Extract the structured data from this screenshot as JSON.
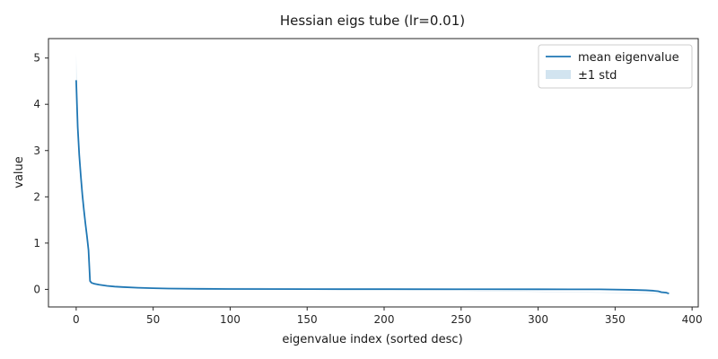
{
  "chart_data": {
    "type": "line",
    "title": "Hessian eigs tube (lr=0.01)",
    "xlabel": "eigenvalue index (sorted desc)",
    "ylabel": "value",
    "xlim": [
      -18,
      404
    ],
    "ylim": [
      -0.38,
      5.42
    ],
    "xticks": [
      0,
      50,
      100,
      150,
      200,
      250,
      300,
      350,
      400
    ],
    "yticks": [
      0,
      1,
      2,
      3,
      4,
      5
    ],
    "grid": false,
    "legend_position": "upper-right",
    "colors": {
      "line": "#1f77b4",
      "band": "#1f77b4",
      "band_opacity": 0.2,
      "axes": "#262626"
    },
    "series": [
      {
        "name": "mean eigenvalue",
        "kind": "line",
        "x": [
          0,
          1,
          2,
          3,
          4,
          5,
          6,
          7,
          8,
          9,
          10,
          12,
          15,
          20,
          25,
          30,
          40,
          50,
          60,
          80,
          100,
          150,
          200,
          250,
          300,
          340,
          360,
          370,
          375,
          378,
          380,
          383,
          385
        ],
        "y": [
          4.52,
          3.5,
          2.9,
          2.45,
          2.05,
          1.72,
          1.42,
          1.15,
          0.85,
          0.18,
          0.14,
          0.12,
          0.1,
          0.075,
          0.06,
          0.05,
          0.035,
          0.025,
          0.018,
          0.012,
          0.008,
          0.005,
          0.004,
          0.003,
          0.002,
          0.0,
          -0.01,
          -0.02,
          -0.03,
          -0.04,
          -0.06,
          -0.07,
          -0.09
        ]
      },
      {
        "name": "±1 std",
        "kind": "band",
        "x": [
          0,
          1,
          2,
          3,
          4,
          5,
          6,
          7,
          8,
          9,
          10,
          15,
          20,
          385
        ],
        "lower": [
          4.0,
          3.35,
          2.8,
          2.38,
          2.0,
          1.68,
          1.39,
          1.13,
          0.83,
          0.17,
          0.135,
          0.098,
          0.074,
          -0.095
        ],
        "upper": [
          5.1,
          3.65,
          3.0,
          2.52,
          2.1,
          1.76,
          1.45,
          1.17,
          0.87,
          0.19,
          0.145,
          0.102,
          0.076,
          -0.085
        ]
      }
    ]
  }
}
